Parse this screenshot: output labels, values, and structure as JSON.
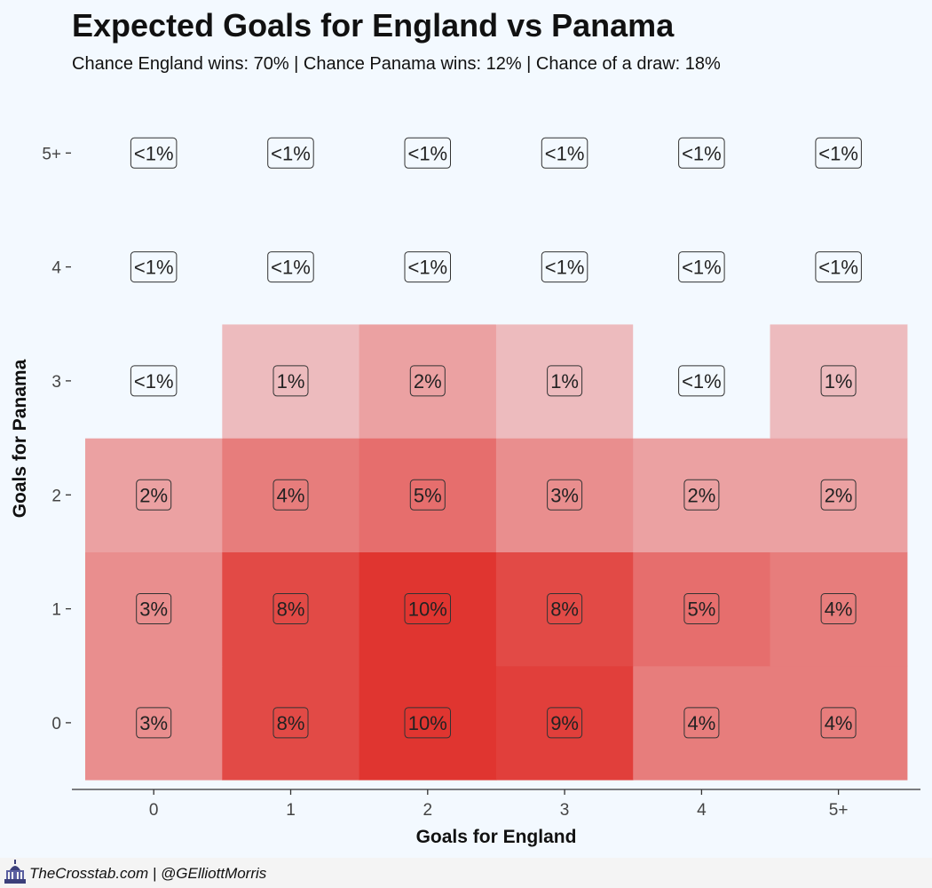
{
  "title": "Expected Goals for England vs Panama",
  "subtitle": "Chance England wins: 70% | Chance Panama wins: 12% | Chance of a draw: 18%",
  "footer": {
    "credit": "TheCrosstab.com | @GElliottMorris",
    "logo_icon": "capitol-building-icon"
  },
  "chart_data": {
    "type": "heatmap",
    "xlabel": "Goals for England",
    "ylabel": "Goals for Panama",
    "x_categories": [
      "0",
      "1",
      "2",
      "3",
      "4",
      "5+"
    ],
    "y_categories": [
      "0",
      "1",
      "2",
      "3",
      "4",
      "5+"
    ],
    "color_scale": {
      "low": "#f3f9ff",
      "high": "#e03530"
    },
    "cells": [
      {
        "x": "0",
        "y": "0",
        "value": 3,
        "label": "3%"
      },
      {
        "x": "1",
        "y": "0",
        "value": 8,
        "label": "8%"
      },
      {
        "x": "2",
        "y": "0",
        "value": 10,
        "label": "10%"
      },
      {
        "x": "3",
        "y": "0",
        "value": 9,
        "label": "9%"
      },
      {
        "x": "4",
        "y": "0",
        "value": 4,
        "label": "4%"
      },
      {
        "x": "5+",
        "y": "0",
        "value": 4,
        "label": "4%"
      },
      {
        "x": "0",
        "y": "1",
        "value": 3,
        "label": "3%"
      },
      {
        "x": "1",
        "y": "1",
        "value": 8,
        "label": "8%"
      },
      {
        "x": "2",
        "y": "1",
        "value": 10,
        "label": "10%"
      },
      {
        "x": "3",
        "y": "1",
        "value": 8,
        "label": "8%"
      },
      {
        "x": "4",
        "y": "1",
        "value": 5,
        "label": "5%"
      },
      {
        "x": "5+",
        "y": "1",
        "value": 4,
        "label": "4%"
      },
      {
        "x": "0",
        "y": "2",
        "value": 2,
        "label": "2%"
      },
      {
        "x": "1",
        "y": "2",
        "value": 4,
        "label": "4%"
      },
      {
        "x": "2",
        "y": "2",
        "value": 5,
        "label": "5%"
      },
      {
        "x": "3",
        "y": "2",
        "value": 3,
        "label": "3%"
      },
      {
        "x": "4",
        "y": "2",
        "value": 2,
        "label": "2%"
      },
      {
        "x": "5+",
        "y": "2",
        "value": 2,
        "label": "2%"
      },
      {
        "x": "0",
        "y": "3",
        "value": 0,
        "label": "<1%"
      },
      {
        "x": "1",
        "y": "3",
        "value": 1,
        "label": "1%"
      },
      {
        "x": "2",
        "y": "3",
        "value": 2,
        "label": "2%"
      },
      {
        "x": "3",
        "y": "3",
        "value": 1,
        "label": "1%"
      },
      {
        "x": "4",
        "y": "3",
        "value": 0,
        "label": "<1%"
      },
      {
        "x": "5+",
        "y": "3",
        "value": 1,
        "label": "1%"
      },
      {
        "x": "0",
        "y": "4",
        "value": 0,
        "label": "<1%"
      },
      {
        "x": "1",
        "y": "4",
        "value": 0,
        "label": "<1%"
      },
      {
        "x": "2",
        "y": "4",
        "value": 0,
        "label": "<1%"
      },
      {
        "x": "3",
        "y": "4",
        "value": 0,
        "label": "<1%"
      },
      {
        "x": "4",
        "y": "4",
        "value": 0,
        "label": "<1%"
      },
      {
        "x": "5+",
        "y": "4",
        "value": 0,
        "label": "<1%"
      },
      {
        "x": "0",
        "y": "5+",
        "value": 0,
        "label": "<1%"
      },
      {
        "x": "1",
        "y": "5+",
        "value": 0,
        "label": "<1%"
      },
      {
        "x": "2",
        "y": "5+",
        "value": 0,
        "label": "<1%"
      },
      {
        "x": "3",
        "y": "5+",
        "value": 0,
        "label": "<1%"
      },
      {
        "x": "4",
        "y": "5+",
        "value": 0,
        "label": "<1%"
      },
      {
        "x": "5+",
        "y": "5+",
        "value": 0,
        "label": "<1%"
      }
    ]
  }
}
